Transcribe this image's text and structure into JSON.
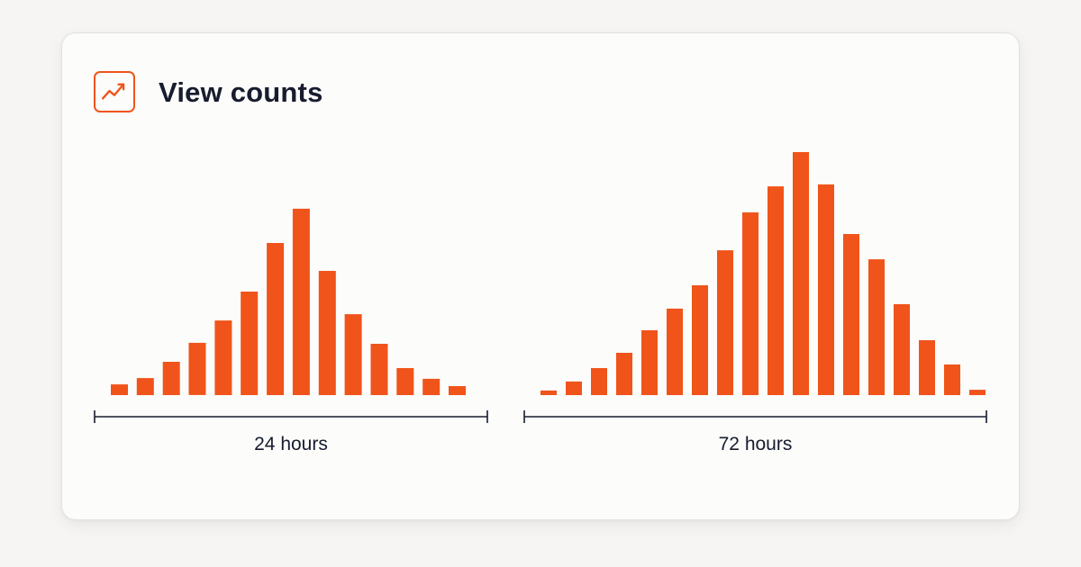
{
  "card": {
    "title": "View counts",
    "icon": "trending-up-icon"
  },
  "colors": {
    "bar": "#f0541a",
    "axis": "#171c2e",
    "text": "#171c2e"
  },
  "chart_data": [
    {
      "type": "bar",
      "xlabel": "24 hours",
      "ylabel": "",
      "ylim": [
        0,
        100
      ],
      "values": [
        4.4,
        7.0,
        13.7,
        21.5,
        30.7,
        42.6,
        62.6,
        76.7,
        51.1,
        33.3,
        21.1,
        11.1,
        6.7,
        3.7
      ]
    },
    {
      "type": "bar",
      "xlabel": "72 hours",
      "ylabel": "",
      "ylim": [
        0,
        100
      ],
      "values": [
        1.9,
        5.6,
        11.1,
        17.4,
        26.7,
        35.6,
        45.2,
        59.6,
        75.2,
        85.9,
        100,
        86.7,
        66.3,
        55.9,
        37.4,
        22.6,
        12.6,
        2.2
      ]
    }
  ]
}
